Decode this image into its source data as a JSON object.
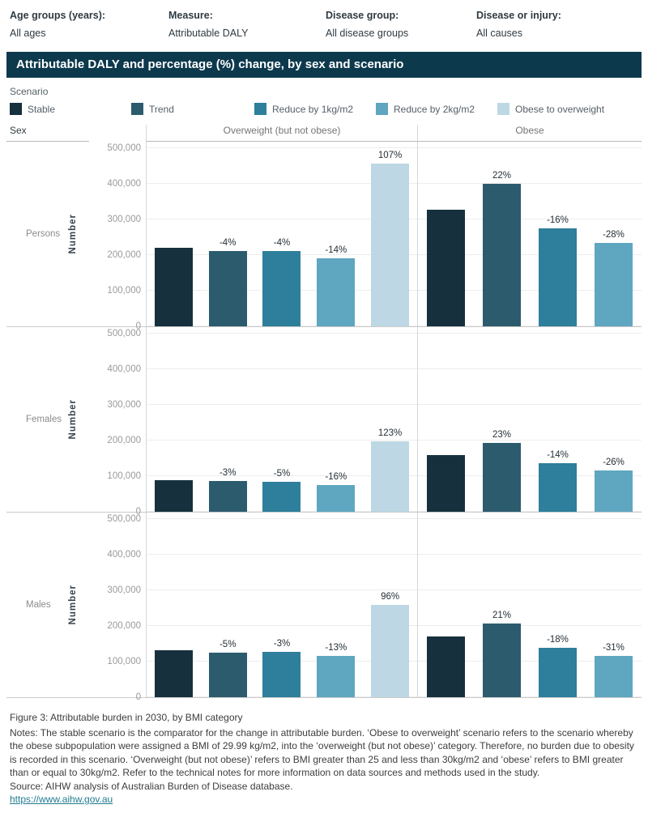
{
  "filters": [
    {
      "label": "Age groups (years):",
      "value": "All ages"
    },
    {
      "label": "Measure:",
      "value": "Attributable DALY"
    },
    {
      "label": "Disease group:",
      "value": "All disease groups"
    },
    {
      "label": "Disease or injury:",
      "value": "All causes"
    }
  ],
  "title": "Attributable DALY and percentage (%) change, by sex and scenario",
  "legend": {
    "title": "Scenario",
    "items": [
      {
        "label": "Stable",
        "color": "#16313d"
      },
      {
        "label": "Trend",
        "color": "#2c5b6e"
      },
      {
        "label": "Reduce by 1kg/m2",
        "color": "#2e7f9b"
      },
      {
        "label": "Reduce by 2kg/m2",
        "color": "#5fa6c0"
      },
      {
        "label": "Obese to overweight",
        "color": "#bdd8e4"
      }
    ]
  },
  "chart_data": {
    "type": "bar",
    "title": "Attributable DALY and percentage (%) change, by sex and scenario",
    "sex_header": "Sex",
    "col_headers": [
      "Overweight (but not obese)",
      "Obese"
    ],
    "ylabel": "Number",
    "ylim": [
      0,
      500000
    ],
    "yticks": [
      "500,000",
      "400,000",
      "300,000",
      "200,000",
      "100,000",
      "0"
    ],
    "grid": "horizontal, every 100,000",
    "legend_position": "top",
    "scenarios": [
      "Stable",
      "Trend",
      "Reduce by 1kg/m2",
      "Reduce by 2kg/m2",
      "Obese to overweight"
    ],
    "rows": [
      {
        "sex": "Persons",
        "overweight": {
          "values": [
            221000,
            212000,
            212000,
            190000,
            457000
          ],
          "pct_labels": [
            null,
            "-4%",
            "-4%",
            "-14%",
            "107%"
          ]
        },
        "obese": {
          "values": [
            327000,
            399000,
            275000,
            235000
          ],
          "pct_labels": [
            null,
            "22%",
            "-16%",
            "-28%"
          ]
        }
      },
      {
        "sex": "Females",
        "overweight": {
          "values": [
            89000,
            86000,
            85000,
            75000,
            198000
          ],
          "pct_labels": [
            null,
            "-3%",
            "-5%",
            "-16%",
            "123%"
          ]
        },
        "obese": {
          "values": [
            158000,
            194000,
            136000,
            117000
          ],
          "pct_labels": [
            null,
            "23%",
            "-14%",
            "-26%"
          ]
        }
      },
      {
        "sex": "Males",
        "overweight": {
          "values": [
            132000,
            125000,
            128000,
            115000,
            259000
          ],
          "pct_labels": [
            null,
            "-5%",
            "-3%",
            "-13%",
            "96%"
          ]
        },
        "obese": {
          "values": [
            170000,
            206000,
            139000,
            117000
          ],
          "pct_labels": [
            null,
            "21%",
            "-18%",
            "-31%"
          ]
        }
      }
    ]
  },
  "footer": {
    "figure_caption": "Figure 3: Attributable burden in 2030, by BMI category",
    "notes": "Notes: The stable scenario is the comparator for the change in attributable burden. ‘Obese to overweight’ scenario refers to the scenario whereby the obese subpopulation were assigned a BMI of 29.99 kg/m2, into the ‘overweight (but not obese)’ category. Therefore, no burden due to obesity is recorded in this scenario. ‘Overweight (but not obese)’ refers to BMI greater than 25 and less than 30kg/m2 and ‘obese’ refers to BMI greater than or equal to 30kg/m2. Refer to the technical notes for more information on data sources and methods used in the study.",
    "source": "Source: AIHW analysis of Australian Burden of Disease database.",
    "link": "https://www.aihw.gov.au"
  }
}
